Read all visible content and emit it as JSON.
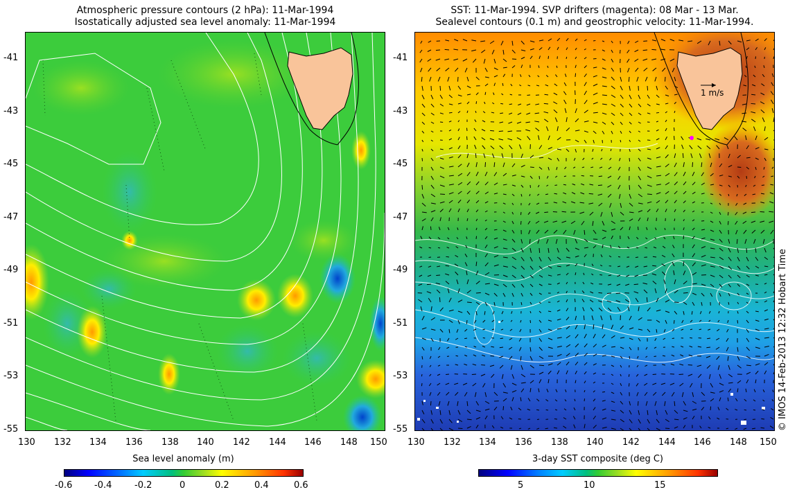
{
  "left_panel": {
    "title_line1": "Atmospheric pressure contours (2 hPa): 11-Mar-1994",
    "title_line2": "Isostatically adjusted sea level anomaly: 11-Mar-1994",
    "x_ticks": [
      "130",
      "132",
      "134",
      "136",
      "138",
      "140",
      "142",
      "144",
      "146",
      "148",
      "150"
    ],
    "y_ticks": [
      "-41",
      "-43",
      "-45",
      "-47",
      "-49",
      "-51",
      "-53",
      "-55"
    ],
    "colorbar_title": "Sea level anomaly (m)",
    "colorbar_ticks": [
      "-0.6",
      "-0.4",
      "-0.2",
      "0",
      "0.2",
      "0.4",
      "0.6"
    ]
  },
  "right_panel": {
    "title_line1": "SST: 11-Mar-1994. SVP drifters (magenta): 08 Mar - 13 Mar.",
    "title_line2": "Sealevel contours (0.1 m) and geostrophic velocity: 11-Mar-1994.",
    "x_ticks": [
      "130",
      "132",
      "134",
      "136",
      "138",
      "140",
      "142",
      "144",
      "146",
      "148",
      "150"
    ],
    "y_ticks": [
      "-41",
      "-43",
      "-45",
      "-47",
      "-49",
      "-51",
      "-53",
      "-55"
    ],
    "velocity_scale_label": "1 m/s",
    "colorbar_title": "3-day SST composite (deg C)",
    "colorbar_ticks": [
      "5",
      "10",
      "15"
    ]
  },
  "credit": "© IMOS 14-Feb-2013 12:32 Hobart Time",
  "colors": {
    "land": "#f9c49a",
    "sla_base": "#33cc33",
    "contour": "#ffffff",
    "drifter": "#ff00ff"
  },
  "icons": {
    "velocity_arrow": "right-arrow-icon"
  }
}
